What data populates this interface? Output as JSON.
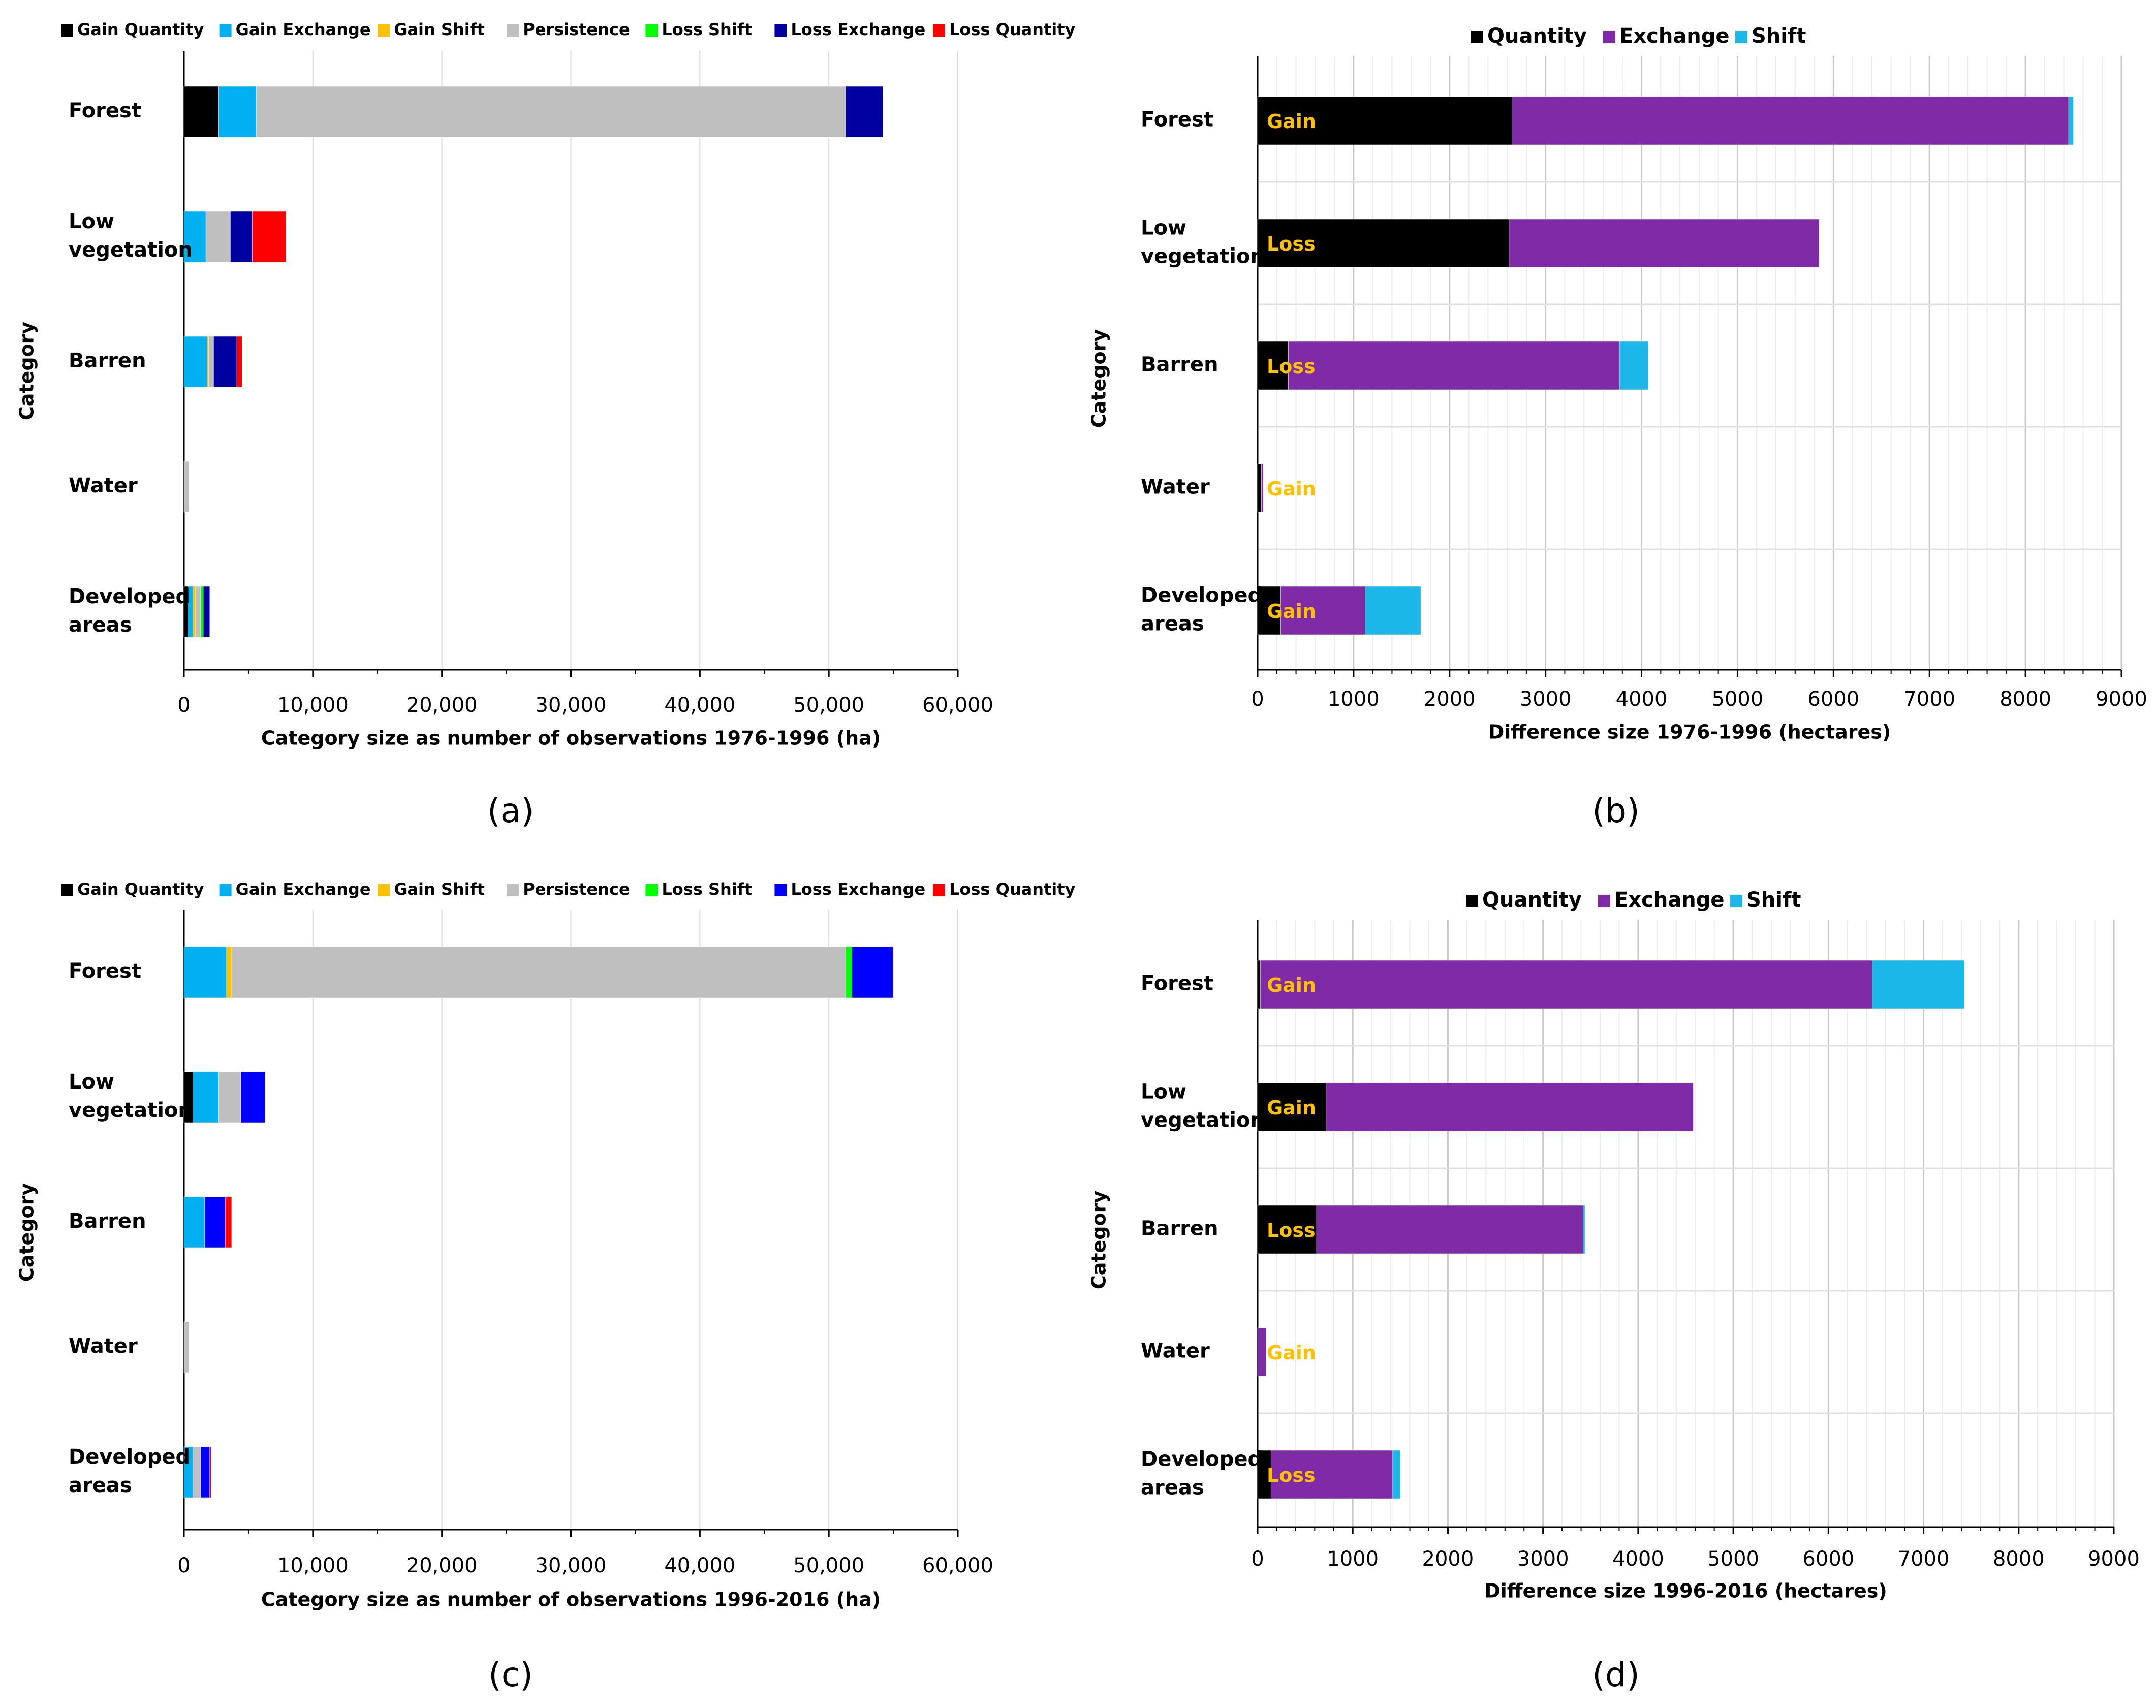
{
  "colors": {
    "gain_quantity": "#000000",
    "gain_exchange": "#00b0f0",
    "gain_shift": "#ffc000",
    "persistence": "#bfbfbf",
    "loss_shift": "#00ff00",
    "loss_exchange_dark": "#0000a0",
    "loss_exchange": "#0000ff",
    "loss_quantity": "#ff0000",
    "quantity": "#000000",
    "exchange": "#7f2aa6",
    "shift": "#1bb7e8",
    "gain_loss_text": "#ffc000",
    "axis": "#000000",
    "grid": "#d9d9d9"
  },
  "chart_data": [
    {
      "panel": "(a)",
      "type": "bar",
      "orientation": "horizontal",
      "stacked": true,
      "title": "",
      "xlabel": "Category size as number of observations 1976-1996 (ha)",
      "ylabel": "Category",
      "xlim": [
        0,
        60000
      ],
      "xticks": [
        0,
        10000,
        20000,
        30000,
        40000,
        50000,
        60000
      ],
      "xtick_labels": [
        "0",
        "10,000",
        "20,000",
        "30,000",
        "40,000",
        "50,000",
        "60,000"
      ],
      "categories": [
        "Forest",
        "Low vegetation",
        "Barren",
        "Water",
        "Developed areas"
      ],
      "category_lines": [
        [
          "Forest"
        ],
        [
          "Low",
          "vegetation"
        ],
        [
          "Barren"
        ],
        [
          "Water"
        ],
        [
          "Developed",
          "areas"
        ]
      ],
      "legend": "top",
      "series": [
        {
          "name": "Gain Quantity",
          "color": "#000000",
          "values": [
            2700,
            0,
            0,
            0,
            300
          ]
        },
        {
          "name": "Gain Exchange",
          "color": "#00b0f0",
          "values": [
            2900,
            1700,
            1800,
            0,
            400
          ]
        },
        {
          "name": "Gain Shift",
          "color": "#ffc000",
          "values": [
            0,
            0,
            100,
            0,
            200
          ]
        },
        {
          "name": "Persistence",
          "color": "#bfbfbf",
          "values": [
            45700,
            1900,
            400,
            400,
            400
          ]
        },
        {
          "name": "Loss Shift",
          "color": "#00ff00",
          "values": [
            0,
            0,
            0,
            0,
            200
          ]
        },
        {
          "name": "Loss Exchange",
          "color": "#0000a0",
          "values": [
            2900,
            1700,
            1800,
            0,
            500
          ]
        },
        {
          "name": "Loss Quantity",
          "color": "#ff0000",
          "values": [
            0,
            2600,
            400,
            0,
            0
          ]
        }
      ]
    },
    {
      "panel": "(b)",
      "type": "bar",
      "orientation": "horizontal",
      "stacked": true,
      "title": "",
      "xlabel": "Difference size 1976-1996 (hectares)",
      "ylabel": "Category",
      "xlim": [
        0,
        9000
      ],
      "xticks": [
        0,
        1000,
        2000,
        3000,
        4000,
        5000,
        6000,
        7000,
        8000,
        9000
      ],
      "xtick_labels": [
        "0",
        "1000",
        "2000",
        "3000",
        "4000",
        "5000",
        "6000",
        "7000",
        "8000",
        "9000"
      ],
      "categories": [
        "Forest",
        "Low vegetation",
        "Barren",
        "Water",
        "Developed areas"
      ],
      "category_lines": [
        [
          "Forest"
        ],
        [
          "Low",
          "vegetation"
        ],
        [
          "Barren"
        ],
        [
          "Water"
        ],
        [
          "Developed",
          "areas"
        ]
      ],
      "bar_labels": [
        "Gain",
        "Loss",
        "Loss",
        "Gain",
        "Gain"
      ],
      "legend": "top",
      "series": [
        {
          "name": "Quantity",
          "color": "#000000",
          "values": [
            2650,
            2620,
            320,
            40,
            240
          ]
        },
        {
          "name": "Exchange",
          "color": "#7f2aa6",
          "values": [
            5800,
            3230,
            3450,
            20,
            880
          ]
        },
        {
          "name": "Shift",
          "color": "#1bb7e8",
          "values": [
            50,
            0,
            300,
            0,
            580
          ]
        }
      ]
    },
    {
      "panel": "(c)",
      "type": "bar",
      "orientation": "horizontal",
      "stacked": true,
      "title": "",
      "xlabel": "Category size as number of observations 1996-2016 (ha)",
      "ylabel": "Category",
      "xlim": [
        0,
        60000
      ],
      "xticks": [
        0,
        10000,
        20000,
        30000,
        40000,
        50000,
        60000
      ],
      "xtick_labels": [
        "0",
        "10,000",
        "20,000",
        "30,000",
        "40,000",
        "50,000",
        "60,000"
      ],
      "categories": [
        "Forest",
        "Low vegetation",
        "Barren",
        "Water",
        "Developed areas"
      ],
      "category_lines": [
        [
          "Forest"
        ],
        [
          "Low",
          "vegetation"
        ],
        [
          "Barren"
        ],
        [
          "Water"
        ],
        [
          "Developed",
          "areas"
        ]
      ],
      "legend": "top",
      "series": [
        {
          "name": "Gain Quantity",
          "color": "#000000",
          "values": [
            0,
            700,
            0,
            0,
            0
          ]
        },
        {
          "name": "Gain Exchange",
          "color": "#00b0f0",
          "values": [
            3300,
            2000,
            1600,
            0,
            700
          ]
        },
        {
          "name": "Gain Shift",
          "color": "#ffc000",
          "values": [
            400,
            0,
            0,
            0,
            0
          ]
        },
        {
          "name": "Persistence",
          "color": "#bfbfbf",
          "values": [
            47600,
            1700,
            0,
            400,
            600
          ]
        },
        {
          "name": "Loss Shift",
          "color": "#00ff00",
          "values": [
            500,
            0,
            0,
            0,
            0
          ]
        },
        {
          "name": "Loss Exchange",
          "color": "#0000ff",
          "values": [
            3200,
            1900,
            1600,
            0,
            700
          ]
        },
        {
          "name": "Loss Quantity",
          "color": "#ff0000",
          "values": [
            0,
            0,
            500,
            0,
            100
          ]
        }
      ]
    },
    {
      "panel": "(d)",
      "type": "bar",
      "orientation": "horizontal",
      "stacked": true,
      "title": "",
      "xlabel": "Difference size 1996-2016 (hectares)",
      "ylabel": "Category",
      "xlim": [
        0,
        9000
      ],
      "xticks": [
        0,
        1000,
        2000,
        3000,
        4000,
        5000,
        6000,
        7000,
        8000,
        9000
      ],
      "xtick_labels": [
        "0",
        "1000",
        "2000",
        "3000",
        "4000",
        "5000",
        "6000",
        "7000",
        "8000",
        "9000"
      ],
      "categories": [
        "Forest",
        "Low vegetation",
        "Barren",
        "Water",
        "Developed areas"
      ],
      "category_lines": [
        [
          "Forest"
        ],
        [
          "Low",
          "vegetation"
        ],
        [
          "Barren"
        ],
        [
          "Water"
        ],
        [
          "Developed",
          "areas"
        ]
      ],
      "bar_labels": [
        "Gain",
        "Gain",
        "Loss",
        "Gain",
        "Loss"
      ],
      "legend": "top",
      "series": [
        {
          "name": "Quantity",
          "color": "#000000",
          "values": [
            30,
            720,
            620,
            0,
            140
          ]
        },
        {
          "name": "Exchange",
          "color": "#7f2aa6",
          "values": [
            6430,
            3860,
            2800,
            90,
            1280
          ]
        },
        {
          "name": "Shift",
          "color": "#1bb7e8",
          "values": [
            970,
            0,
            20,
            0,
            80
          ]
        }
      ]
    }
  ]
}
